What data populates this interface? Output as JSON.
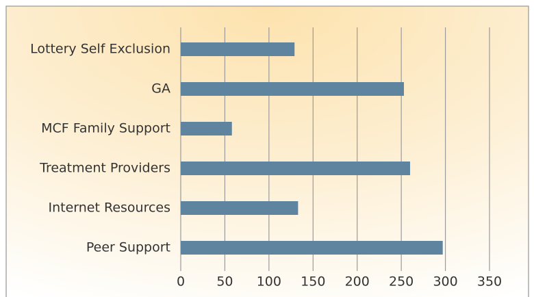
{
  "chart_data": {
    "type": "bar",
    "orientation": "horizontal",
    "categories": [
      "Lottery Self Exclusion",
      "GA",
      "MCF Family Support",
      "Treatment Providers",
      "Internet Resources",
      "Peer Support"
    ],
    "values": [
      129,
      253,
      58,
      260,
      133,
      297
    ],
    "color": "#5f84a0",
    "xlim": [
      0,
      350
    ],
    "xticks": [
      0,
      50,
      100,
      150,
      200,
      250,
      300,
      350
    ],
    "grid": true
  }
}
